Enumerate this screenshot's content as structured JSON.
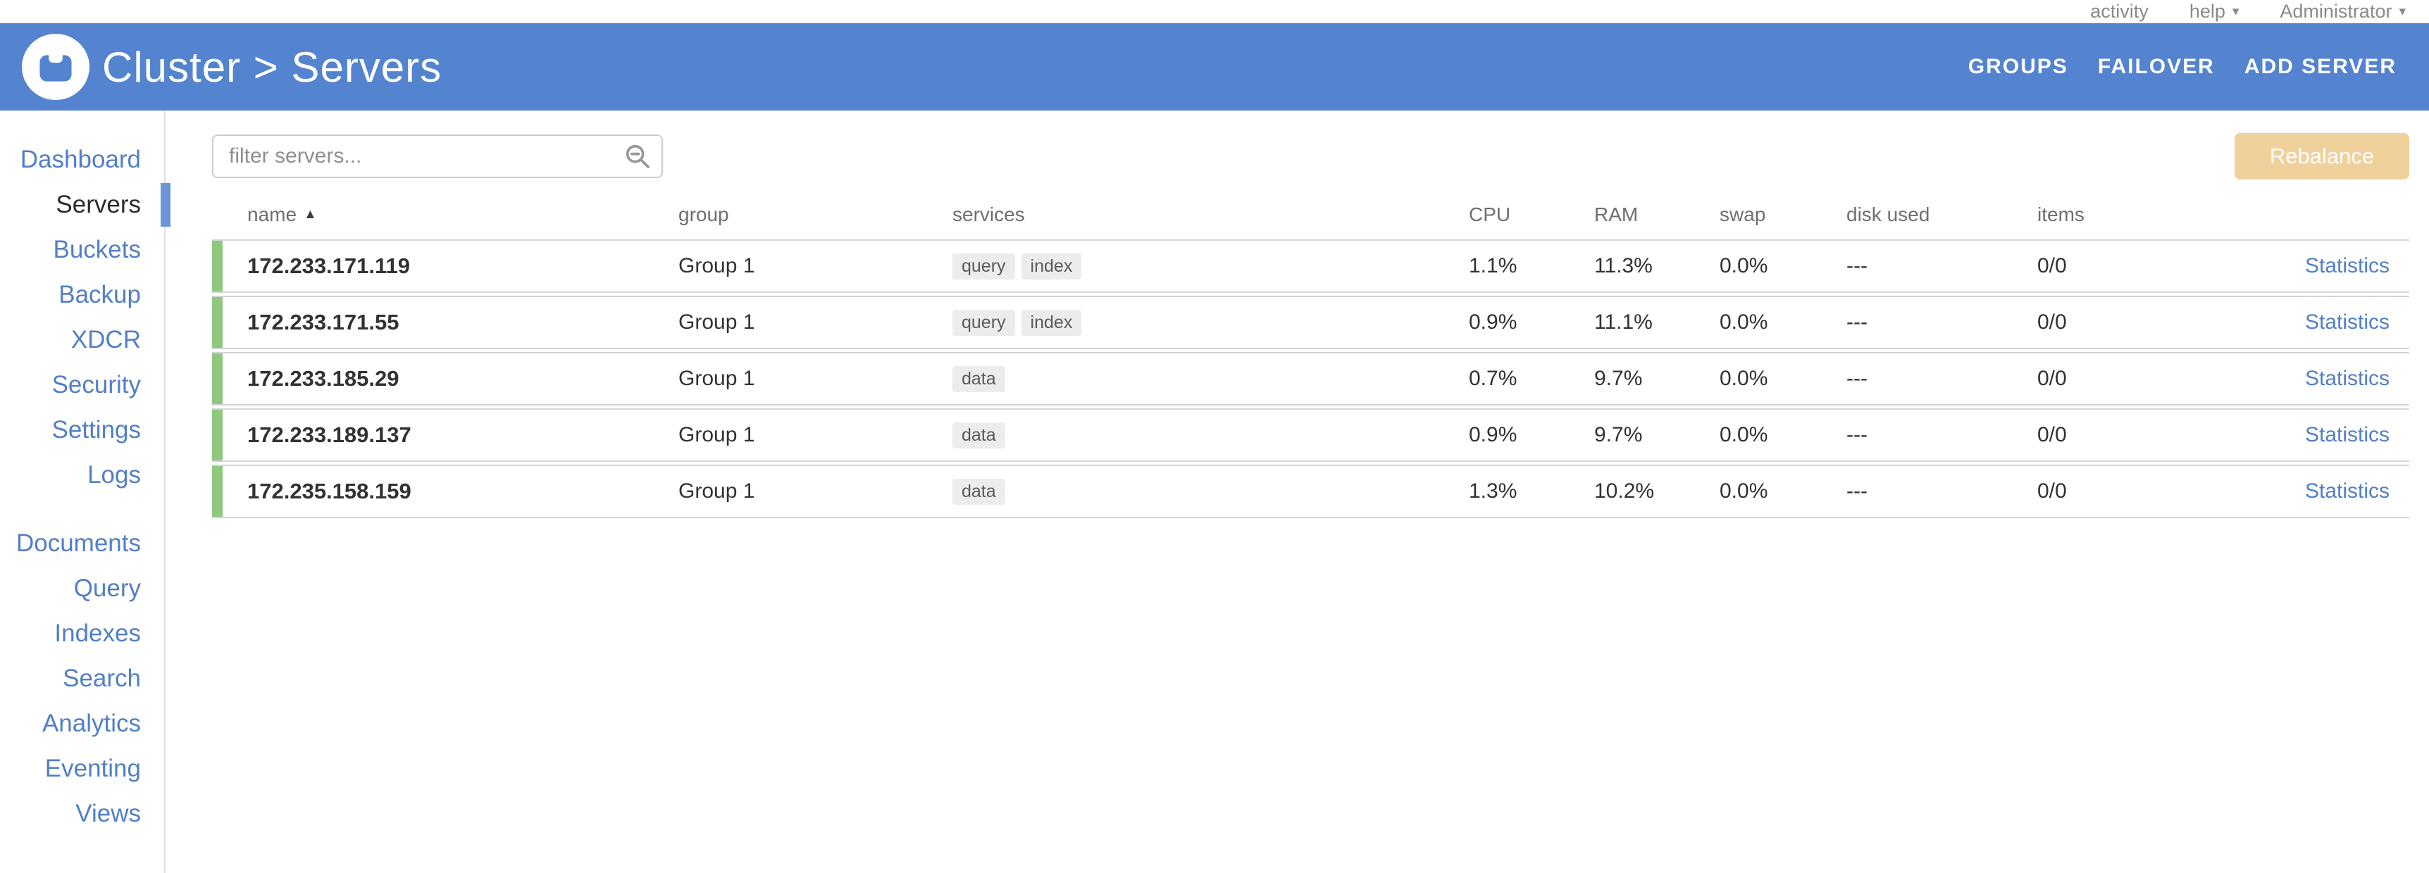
{
  "topbar": {
    "items": [
      {
        "label": "activity",
        "caret": false
      },
      {
        "label": "help",
        "caret": true
      },
      {
        "label": "Administrator",
        "caret": true
      }
    ]
  },
  "header": {
    "title": "Cluster > Servers",
    "actions": [
      "GROUPS",
      "FAILOVER",
      "ADD SERVER"
    ]
  },
  "sidebar": {
    "primary": [
      {
        "label": "Dashboard",
        "active": false
      },
      {
        "label": "Servers",
        "active": true
      },
      {
        "label": "Buckets",
        "active": false
      },
      {
        "label": "Backup",
        "active": false
      },
      {
        "label": "XDCR",
        "active": false
      },
      {
        "label": "Security",
        "active": false
      },
      {
        "label": "Settings",
        "active": false
      },
      {
        "label": "Logs",
        "active": false
      }
    ],
    "secondary": [
      {
        "label": "Documents",
        "active": false
      },
      {
        "label": "Query",
        "active": false
      },
      {
        "label": "Indexes",
        "active": false
      },
      {
        "label": "Search",
        "active": false
      },
      {
        "label": "Analytics",
        "active": false
      },
      {
        "label": "Eventing",
        "active": false
      },
      {
        "label": "Views",
        "active": false
      }
    ]
  },
  "toolbar": {
    "filter_placeholder": "filter servers...",
    "rebalance_label": "Rebalance"
  },
  "table": {
    "columns": [
      "name",
      "group",
      "services",
      "CPU",
      "RAM",
      "swap",
      "disk used",
      "items"
    ],
    "sort_column": "name",
    "sort_direction": "ascending",
    "stats_label": "Statistics",
    "rows": [
      {
        "name": "172.233.171.119",
        "group": "Group 1",
        "services": [
          "query",
          "index"
        ],
        "cpu": "1.1%",
        "ram": "11.3%",
        "swap": "0.0%",
        "disk": "---",
        "items": "0/0"
      },
      {
        "name": "172.233.171.55",
        "group": "Group 1",
        "services": [
          "query",
          "index"
        ],
        "cpu": "0.9%",
        "ram": "11.1%",
        "swap": "0.0%",
        "disk": "---",
        "items": "0/0"
      },
      {
        "name": "172.233.185.29",
        "group": "Group 1",
        "services": [
          "data"
        ],
        "cpu": "0.7%",
        "ram": "9.7%",
        "swap": "0.0%",
        "disk": "---",
        "items": "0/0"
      },
      {
        "name": "172.233.189.137",
        "group": "Group 1",
        "services": [
          "data"
        ],
        "cpu": "0.9%",
        "ram": "9.7%",
        "swap": "0.0%",
        "disk": "---",
        "items": "0/0"
      },
      {
        "name": "172.235.158.159",
        "group": "Group 1",
        "services": [
          "data"
        ],
        "cpu": "1.3%",
        "ram": "10.2%",
        "swap": "0.0%",
        "disk": "---",
        "items": "0/0"
      }
    ]
  },
  "colors": {
    "header_blue": "#5484cf",
    "link_blue": "#527fc5",
    "active_indicator_blue": "#6b94d6",
    "row_status_green": "#8fc87e",
    "rebalance_tan": "#f0d09b"
  }
}
